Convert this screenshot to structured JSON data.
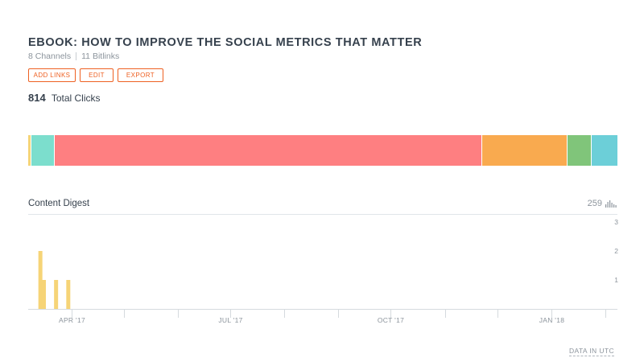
{
  "header": {
    "title": "EBOOK: HOW TO IMPROVE THE SOCIAL METRICS THAT MATTER",
    "channels": "8 Channels",
    "bitlinks": "11 Bitlinks"
  },
  "actions": {
    "add_links": "ADD LINKS",
    "edit": "EDIT",
    "export": "EXPORT"
  },
  "summary": {
    "total_clicks_value": "814",
    "total_clicks_label": "Total Clicks"
  },
  "channel_breakdown": [
    {
      "color": "#f6d477",
      "share": 0.005
    },
    {
      "color": "#7cdecd",
      "share": 0.04
    },
    {
      "color": "#fe7f81",
      "share": 0.725
    },
    {
      "color": "#f9aa4f",
      "share": 0.145
    },
    {
      "color": "#80c57a",
      "share": 0.042
    },
    {
      "color": "#6ccfd8",
      "share": 0.043
    }
  ],
  "section": {
    "title": "Content Digest",
    "count": "259",
    "chart_icon": "bar-chart-icon"
  },
  "footer": {
    "data_note": "DATA IN UTC"
  },
  "chart_data": {
    "type": "bar",
    "color": "#f6d477",
    "x_range": [
      "2017-03-07",
      "2018-02-08"
    ],
    "ylim": [
      0,
      3
    ],
    "y_ticks": [
      1,
      2,
      3
    ],
    "x_tick_labels": [
      {
        "label": "APR '17",
        "date": "2017-04-01"
      },
      {
        "label": "JUL '17",
        "date": "2017-07-01"
      },
      {
        "label": "OCT '17",
        "date": "2017-10-01"
      },
      {
        "label": "JAN '18",
        "date": "2018-01-01"
      }
    ],
    "unlabeled_tick_dates": [
      "2017-05-01",
      "2017-06-01",
      "2017-08-01",
      "2017-09-01",
      "2017-11-01",
      "2017-12-01",
      "2018-02-01"
    ],
    "points": [
      {
        "date": "2017-03-14",
        "value": 2
      },
      {
        "date": "2017-03-16",
        "value": 1
      },
      {
        "date": "2017-03-23",
        "value": 1
      },
      {
        "date": "2017-03-30",
        "value": 1
      }
    ],
    "grid": false
  }
}
